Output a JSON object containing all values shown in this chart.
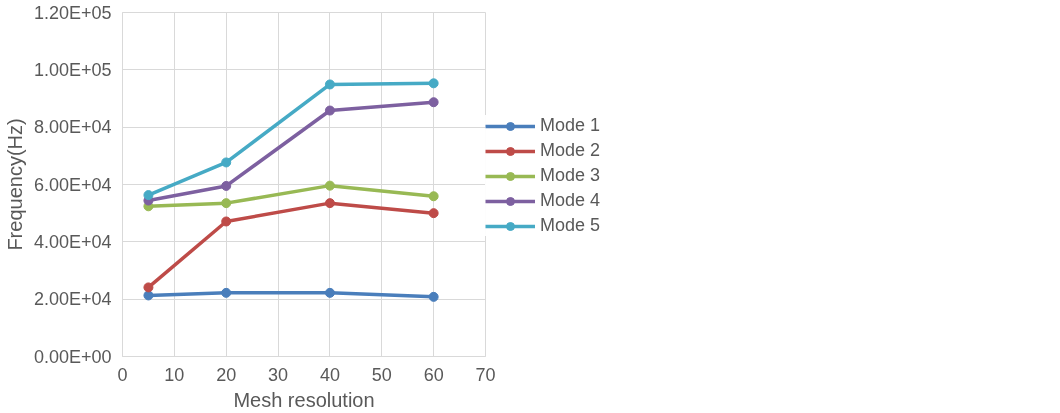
{
  "chart_data": {
    "type": "line",
    "xlabel": "Mesh resolution",
    "ylabel": "Frequency(Hz)",
    "x": [
      5,
      20,
      40,
      60
    ],
    "series": [
      {
        "name": "Mode 1",
        "color": "#4a7ebb",
        "values": [
          21300,
          22200,
          22200,
          20800
        ]
      },
      {
        "name": "Mode 2",
        "color": "#be4b48",
        "values": [
          24100,
          47100,
          53500,
          50000
        ]
      },
      {
        "name": "Mode 3",
        "color": "#98b954",
        "values": [
          52400,
          53500,
          59600,
          55900
        ]
      },
      {
        "name": "Mode 4",
        "color": "#7d60a0",
        "values": [
          54400,
          59500,
          85800,
          88700
        ]
      },
      {
        "name": "Mode 5",
        "color": "#46aac5",
        "values": [
          56300,
          67700,
          94900,
          95300
        ]
      }
    ],
    "xlim": [
      0,
      70
    ],
    "xticks": [
      0,
      10,
      20,
      30,
      40,
      50,
      60,
      70
    ],
    "ylim": [
      0,
      120000
    ],
    "yticks": [
      {
        "value": 0,
        "label": "0.00E+00"
      },
      {
        "value": 20000,
        "label": "2.00E+04"
      },
      {
        "value": 40000,
        "label": "4.00E+04"
      },
      {
        "value": 60000,
        "label": "6.00E+04"
      },
      {
        "value": 80000,
        "label": "8.00E+04"
      },
      {
        "value": 100000,
        "label": "1.00E+05"
      },
      {
        "value": 120000,
        "label": "1.20E+05"
      }
    ],
    "grid": true,
    "legend": "right",
    "marker": "circle",
    "line_style": "solid"
  }
}
